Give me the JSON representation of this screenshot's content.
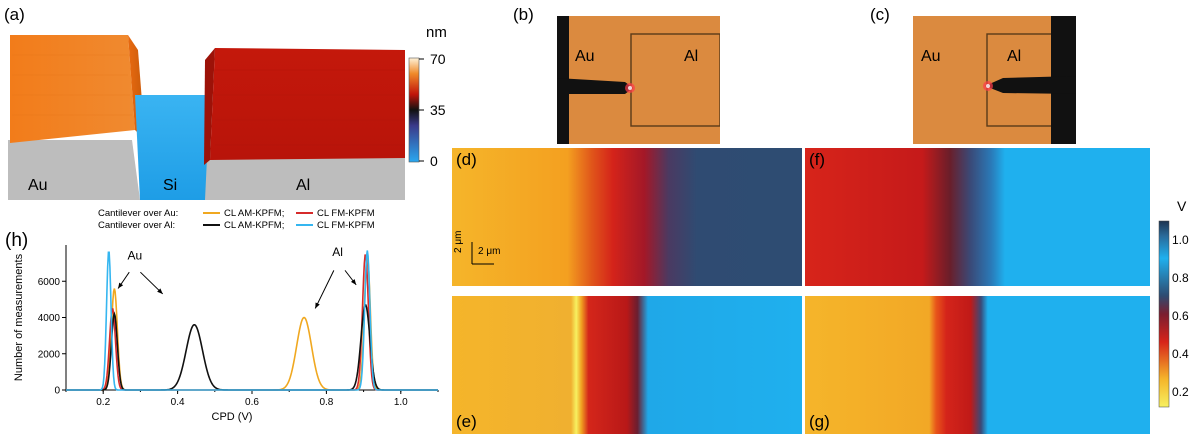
{
  "panels": {
    "a": {
      "label": "(a)",
      "materials": [
        "Au",
        "Si",
        "Al"
      ],
      "colorbar": {
        "unit": "nm",
        "ticks": [
          "70",
          "35",
          "0"
        ]
      }
    },
    "b": {
      "label": "(b)",
      "left": "Au",
      "right": "Al"
    },
    "c": {
      "label": "(c)",
      "left": "Au",
      "right": "Al"
    },
    "d": {
      "label": "(d)",
      "scalebar_v": "2 μm",
      "scalebar_h": "2 μm"
    },
    "e": {
      "label": "(e)"
    },
    "f": {
      "label": "(f)"
    },
    "g": {
      "label": "(g)"
    },
    "h": {
      "label": "(h)"
    }
  },
  "colorbar_v": {
    "unit": "V",
    "ticks": [
      "1.0",
      "0.8",
      "0.6",
      "0.4",
      "0.2"
    ]
  },
  "colors": {
    "au_orange": "#f07a14",
    "si_blue": "#29a8ee",
    "al_red": "#c8190d",
    "kpfm_yellow": "#f5b52a",
    "kpfm_red": "#d7241a",
    "kpfm_blue": "#1fb0ee",
    "kpfm_navy": "#2e4c72",
    "optical_bg": "#d98a34",
    "series_am_au": "#f0a820",
    "series_fm_au": "#d62b2b",
    "series_am_al": "#111111",
    "series_fm_al": "#35b6f0"
  },
  "chart_data": {
    "type": "line",
    "legend_rows": [
      {
        "prefix": "Cantilever over Au:",
        "items": [
          "CL AM-KPFM;",
          "CL FM-KPFM"
        ]
      },
      {
        "prefix": "Cantilever over Al:",
        "items": [
          "CL AM-KPFM;",
          "CL FM-KPFM"
        ]
      }
    ],
    "xlabel": "CPD (V)",
    "ylabel": "Number of measurements",
    "xlim": [
      0.1,
      1.1
    ],
    "ylim": [
      0,
      8000
    ],
    "xticks": [
      "0.2",
      "0.4",
      "0.6",
      "0.8",
      "1.0"
    ],
    "yticks": [
      "0",
      "2000",
      "4000",
      "6000"
    ],
    "annotations": [
      "Au",
      "Al"
    ],
    "series": [
      {
        "name": "CL AM-KPFM",
        "group": "Cantilever over Au",
        "color": "#f0a820",
        "peaks": [
          {
            "x": 0.23,
            "h": 5600,
            "w": 0.008
          },
          {
            "x": 0.74,
            "h": 4000,
            "w": 0.02
          },
          {
            "x": 0.91,
            "h": 7400,
            "w": 0.008
          }
        ]
      },
      {
        "name": "CL FM-KPFM",
        "group": "Cantilever over Au",
        "color": "#d62b2b",
        "peaks": [
          {
            "x": 0.225,
            "h": 4500,
            "w": 0.008
          },
          {
            "x": 0.905,
            "h": 7500,
            "w": 0.008
          }
        ]
      },
      {
        "name": "CL AM-KPFM",
        "group": "Cantilever over Al",
        "color": "#111111",
        "peaks": [
          {
            "x": 0.23,
            "h": 4200,
            "w": 0.008
          },
          {
            "x": 0.445,
            "h": 3600,
            "w": 0.022
          },
          {
            "x": 0.905,
            "h": 4700,
            "w": 0.012
          }
        ]
      },
      {
        "name": "CL FM-KPFM",
        "group": "Cantilever over Al",
        "color": "#35b6f0",
        "peaks": [
          {
            "x": 0.215,
            "h": 7700,
            "w": 0.006
          },
          {
            "x": 0.91,
            "h": 7700,
            "w": 0.007
          }
        ]
      }
    ]
  }
}
